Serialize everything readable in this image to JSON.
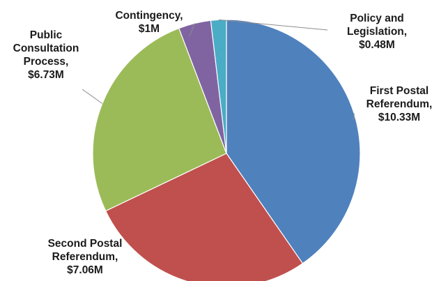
{
  "chart_data": {
    "type": "pie",
    "title": "",
    "start_angle_deg": 0,
    "direction": "clockwise",
    "slices": [
      {
        "name": "First Postal Referendum",
        "value": 10.33,
        "value_label": "$10.33M",
        "label_lines": [
          "First Postal",
          "Referendum,",
          "$10.33M"
        ],
        "color": "#4f81bd"
      },
      {
        "name": "Second Postal Referendum",
        "value": 7.06,
        "value_label": "$7.06M",
        "label_lines": [
          "Second Postal",
          "Referendum,",
          "$7.06M"
        ],
        "color": "#c0504d"
      },
      {
        "name": "Public Consultation Process",
        "value": 6.73,
        "value_label": "$6.73M",
        "label_lines": [
          "Public",
          "Consultation",
          "Process,",
          "$6.73M"
        ],
        "color": "#9bbb59"
      },
      {
        "name": "Contingency",
        "value": 1,
        "value_label": "$1M",
        "label_lines": [
          "Contingency,",
          "$1M"
        ],
        "color": "#8064a2"
      },
      {
        "name": "Policy and Legislation",
        "value": 0.48,
        "value_label": "$0.48M",
        "label_lines": [
          "Policy and",
          "Legislation,",
          "$0.48M"
        ],
        "color": "#4bacc6"
      }
    ]
  }
}
